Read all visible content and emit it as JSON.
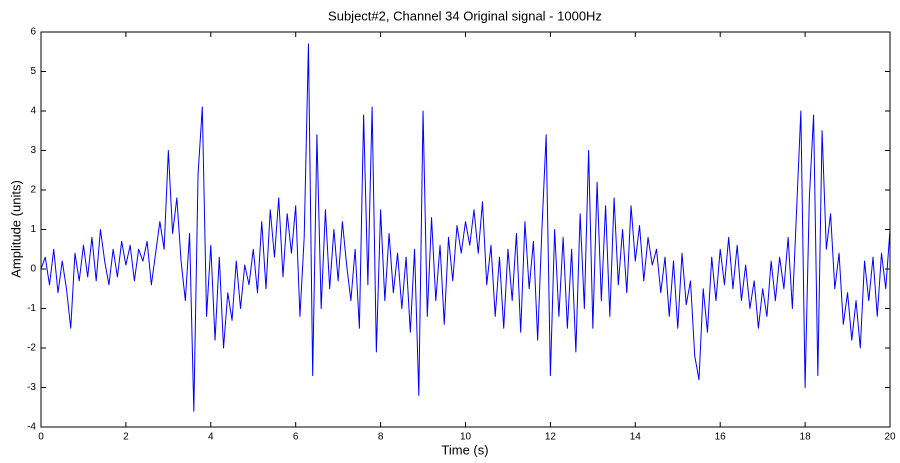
{
  "chart_data": {
    "type": "line",
    "title": "Subject#2, Channel 34 Original signal - 1000Hz",
    "x_label": "Time (s)",
    "y_label": "Amplitude (units)",
    "color": "#0000ff",
    "xlim": [
      0,
      20
    ],
    "xticks": [
      0,
      2,
      4,
      6,
      8,
      10,
      12,
      14,
      16,
      18,
      20
    ],
    "ylim": [
      -4,
      6
    ],
    "yticks": [
      -4,
      -3,
      -2,
      -1,
      0,
      1,
      2,
      3,
      4,
      5,
      6
    ],
    "grid": false,
    "x": [
      0,
      0.1,
      0.2,
      0.3,
      0.4,
      0.5,
      0.6,
      0.7,
      0.8,
      0.9,
      1,
      1.1,
      1.2,
      1.3,
      1.4,
      1.5,
      1.6,
      1.7,
      1.8,
      1.9,
      2,
      2.1,
      2.2,
      2.3,
      2.4,
      2.5,
      2.6,
      2.7,
      2.8,
      2.9,
      3,
      3.1,
      3.2,
      3.3,
      3.4,
      3.5,
      3.6,
      3.7,
      3.8,
      3.9,
      4,
      4.1,
      4.2,
      4.3,
      4.4,
      4.5,
      4.6,
      4.7,
      4.8,
      4.9,
      5,
      5.1,
      5.2,
      5.3,
      5.4,
      5.5,
      5.6,
      5.7,
      5.8,
      5.9,
      6,
      6.1,
      6.2,
      6.3,
      6.4,
      6.5,
      6.6,
      6.7,
      6.8,
      6.9,
      7,
      7.1,
      7.2,
      7.3,
      7.4,
      7.5,
      7.6,
      7.7,
      7.8,
      7.9,
      8,
      8.1,
      8.2,
      8.3,
      8.4,
      8.5,
      8.6,
      8.7,
      8.8,
      8.9,
      9,
      9.1,
      9.2,
      9.3,
      9.4,
      9.5,
      9.6,
      9.7,
      9.8,
      9.9,
      10,
      10.1,
      10.2,
      10.3,
      10.4,
      10.5,
      10.6,
      10.7,
      10.8,
      10.9,
      11,
      11.1,
      11.2,
      11.3,
      11.4,
      11.5,
      11.6,
      11.7,
      11.8,
      11.9,
      12,
      12.1,
      12.2,
      12.3,
      12.4,
      12.5,
      12.6,
      12.7,
      12.8,
      12.9,
      13,
      13.1,
      13.2,
      13.3,
      13.4,
      13.5,
      13.6,
      13.7,
      13.8,
      13.9,
      14,
      14.1,
      14.2,
      14.3,
      14.4,
      14.5,
      14.6,
      14.7,
      14.8,
      14.9,
      15,
      15.1,
      15.2,
      15.3,
      15.4,
      15.5,
      15.6,
      15.7,
      15.8,
      15.9,
      16,
      16.1,
      16.2,
      16.3,
      16.4,
      16.5,
      16.6,
      16.7,
      16.8,
      16.9,
      17,
      17.1,
      17.2,
      17.3,
      17.4,
      17.5,
      17.6,
      17.7,
      17.8,
      17.9,
      18,
      18.1,
      18.2,
      18.3,
      18.4,
      18.5,
      18.6,
      18.7,
      18.8,
      18.9,
      19,
      19.1,
      19.2,
      19.3,
      19.4,
      19.5,
      19.6,
      19.7,
      19.8,
      19.9,
      20
    ],
    "values": [
      0,
      0.3,
      -0.4,
      0.5,
      -0.6,
      0.2,
      -0.5,
      -1.5,
      0.4,
      -0.3,
      0.6,
      -0.2,
      0.8,
      -0.3,
      1.0,
      0.2,
      -0.4,
      0.5,
      -0.2,
      0.7,
      0.1,
      0.6,
      -0.3,
      0.5,
      0.2,
      0.7,
      -0.4,
      0.4,
      1.2,
      0.5,
      3.0,
      0.9,
      1.8,
      0.2,
      -0.8,
      0.9,
      -3.6,
      2.4,
      4.1,
      -1.2,
      0.6,
      -1.8,
      0.3,
      -2.0,
      -0.6,
      -1.3,
      0.2,
      -1.0,
      0.1,
      -0.4,
      0.5,
      -0.6,
      1.2,
      -0.5,
      1.5,
      0.3,
      1.8,
      -0.2,
      1.4,
      0.4,
      1.6,
      -1.2,
      0.8,
      5.7,
      -2.7,
      3.4,
      -1.0,
      1.5,
      -0.5,
      1.0,
      -0.3,
      1.2,
      0.1,
      -0.8,
      0.5,
      -1.5,
      3.9,
      -0.4,
      4.1,
      -2.1,
      1.5,
      -0.8,
      0.9,
      -0.6,
      0.4,
      -1.0,
      0.3,
      -1.6,
      0.5,
      -3.2,
      4.0,
      -1.2,
      1.3,
      -0.8,
      0.6,
      -1.4,
      0.8,
      -0.3,
      1.1,
      0.4,
      1.2,
      0.6,
      1.5,
      0.4,
      1.7,
      -0.4,
      0.6,
      -1.2,
      0.3,
      -1.5,
      0.5,
      -0.8,
      0.9,
      -1.6,
      1.2,
      -0.5,
      0.7,
      -1.8,
      1.0,
      3.4,
      -2.7,
      1.0,
      -1.2,
      0.8,
      -1.5,
      0.5,
      -2.1,
      1.4,
      -1.0,
      3.0,
      -1.5,
      2.2,
      -0.8,
      1.6,
      -1.2,
      1.8,
      -0.4,
      1.0,
      -0.6,
      1.6,
      0.2,
      1.1,
      -0.3,
      0.8,
      0.1,
      0.5,
      -0.6,
      0.3,
      -1.2,
      0.2,
      -1.5,
      0.4,
      -0.9,
      -0.3,
      -2.2,
      -2.8,
      -0.5,
      -1.6,
      0.3,
      -0.8,
      0.5,
      -0.4,
      0.8,
      -0.5,
      0.6,
      -0.8,
      0.1,
      -1.0,
      -0.3,
      -1.5,
      -0.5,
      -1.2,
      0.2,
      -0.8,
      0.3,
      -0.5,
      0.8,
      -1.0,
      1.5,
      4.0,
      -3.0,
      1.8,
      3.9,
      -2.7,
      3.5,
      0.5,
      1.4,
      -0.5,
      0.4,
      -1.4,
      -0.6,
      -1.8,
      -0.8,
      -2.0,
      0.2,
      -0.8,
      0.3,
      -1.2,
      0.4,
      -0.5,
      1.0
    ]
  }
}
